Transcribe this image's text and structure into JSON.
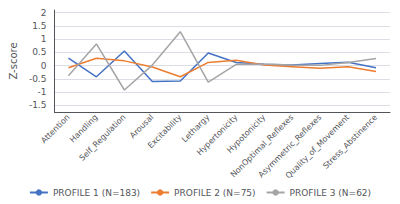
{
  "chart_data": {
    "type": "line",
    "categories": [
      "Attention",
      "Handling",
      "Self_Regulation",
      "Arousal",
      "Excitability",
      "Lethargy",
      "Hypertonicity",
      "Hypotonicity",
      "NonOptimal_Reflexes",
      "Asymmetric_Reflexes",
      "Quality_of_Movement",
      "Stress_Abstinence"
    ],
    "series": [
      {
        "name": "PROFILE 1 (N=183)",
        "color": "#4472C4",
        "values": [
          0.28,
          -0.42,
          0.55,
          -0.6,
          -0.58,
          0.48,
          0.12,
          0.05,
          0.02,
          0.08,
          0.13,
          -0.08
        ]
      },
      {
        "name": "PROFILE 2 (N=75)",
        "color": "#ED7D31",
        "values": [
          -0.08,
          0.28,
          0.18,
          -0.05,
          -0.42,
          0.12,
          0.2,
          0.02,
          -0.04,
          -0.1,
          -0.04,
          -0.22
        ]
      },
      {
        "name": "PROFILE 3 (N=62)",
        "color": "#A5A5A5",
        "values": [
          -0.38,
          0.82,
          -0.92,
          0.02,
          1.28,
          -0.62,
          0.05,
          0.05,
          0.02,
          0.01,
          0.12,
          0.27
        ]
      }
    ],
    "ylabel": "Z-score",
    "ylim": [
      -1.75,
      2.1
    ],
    "yticks": [
      -1.5,
      -1,
      -0.5,
      0,
      0.5,
      1,
      1.5,
      2
    ],
    "grid": true,
    "legend": "bottom"
  }
}
